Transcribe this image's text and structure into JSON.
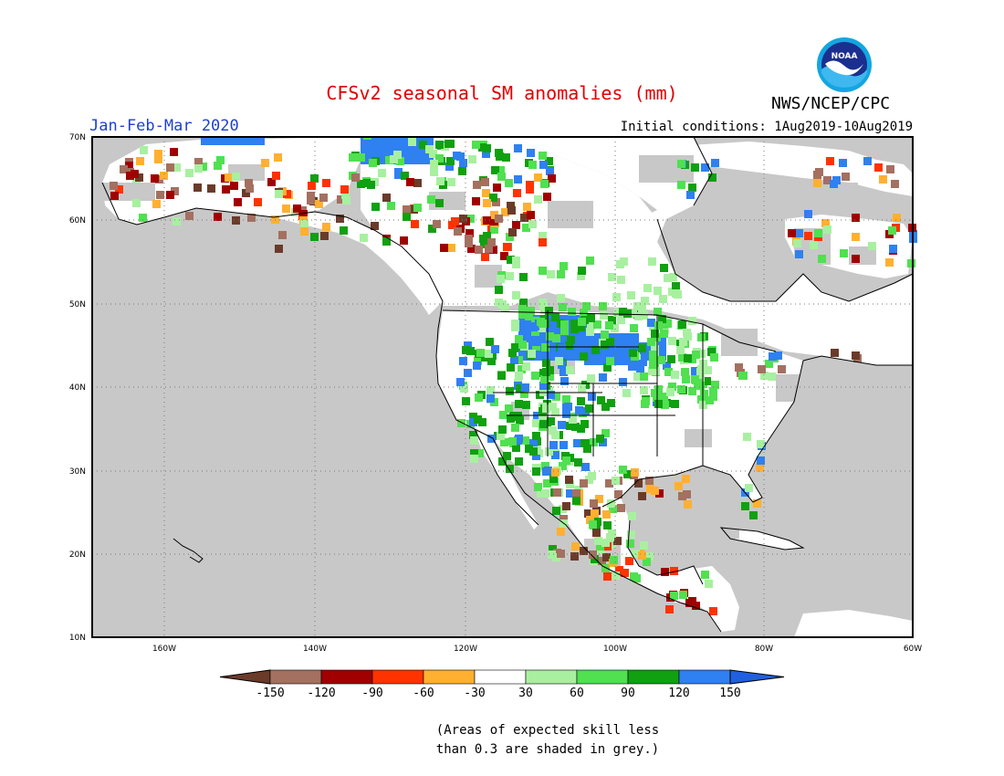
{
  "header": {
    "title": "CFSv2 seasonal SM anomalies (mm)",
    "period": "Jan-Feb-Mar 2020",
    "initial_conditions": "Initial conditions: 1Aug2019-10Aug2019",
    "agency": "NWS/NCEP/CPC",
    "logo_text": "NOAA"
  },
  "map": {
    "lat_labels": [
      "70N",
      "60N",
      "50N",
      "40N",
      "30N",
      "20N",
      "10N"
    ],
    "lon_labels": [
      "160W",
      "140W",
      "120W",
      "100W",
      "80W",
      "60W"
    ],
    "grey_meaning": "low skill",
    "colors": {
      "background_grey": "#c8c8c8",
      "land_white": "#ffffff",
      "coastline": "#000000"
    }
  },
  "legend": {
    "labels": [
      "-150",
      "-120",
      "-90",
      "-60",
      "-30",
      "30",
      "60",
      "90",
      "120",
      "150"
    ],
    "colors": [
      "#6b3b2a",
      "#a47060",
      "#a00000",
      "#ff3300",
      "#ffb030",
      "#ffffff",
      "#a8f0a0",
      "#50e050",
      "#10a010",
      "#2f80f0",
      "#2060e0"
    ]
  },
  "footnote": {
    "line1": "(Areas of expected skill less",
    "line2": "than 0.3 are shaded in grey.)"
  }
}
